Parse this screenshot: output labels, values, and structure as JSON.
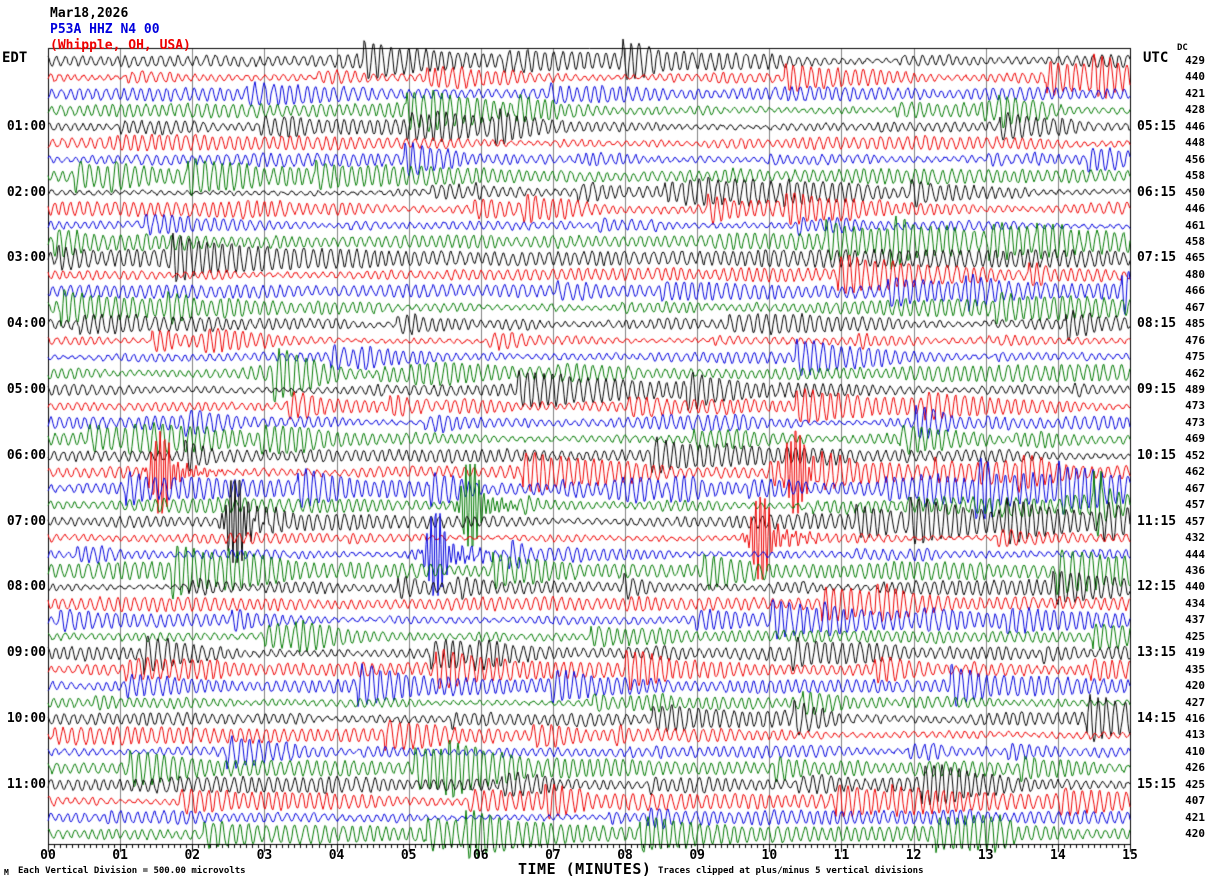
{
  "header": {
    "date": "Mar18,2026",
    "station": "P53A HHZ N4 00",
    "location": "(Whipple, OH, USA)"
  },
  "left_axis": {
    "label": "EDT",
    "hour_labels": [
      "01:00",
      "02:00",
      "03:00",
      "04:00",
      "05:00",
      "06:00",
      "07:00",
      "08:00",
      "09:00",
      "10:00",
      "11:00"
    ]
  },
  "right_axis": {
    "label": "UTC",
    "dc_label": "DC",
    "hour_labels": [
      "05:15",
      "06:15",
      "07:15",
      "08:15",
      "09:15",
      "10:15",
      "11:15",
      "12:15",
      "13:15",
      "14:15",
      "15:15"
    ]
  },
  "x_axis": {
    "title": "TIME (MINUTES)",
    "tick_labels": [
      "00",
      "01",
      "02",
      "03",
      "04",
      "05",
      "06",
      "07",
      "08",
      "09",
      "10",
      "11",
      "12",
      "13",
      "14",
      "15"
    ]
  },
  "footer": {
    "scale_note": "Each Vertical Division =  500.00 microvolts",
    "clip_note": "Traces clipped at plus/minus 5 vertical divisions",
    "corner_mark": "M"
  },
  "colors": {
    "trace_cycle": [
      "#000000",
      "#ee0000",
      "#0000dd",
      "#007a00"
    ],
    "grid": "#808080",
    "frame": "#000000",
    "station_text": "#0000dd",
    "location_text": "#ee0000"
  },
  "chart_data": {
    "type": "line",
    "title": "P53A HHZ N4 00 (Whipple, OH, USA) helicorder seismogram, Mar18,2026",
    "x_range_minutes": [
      0,
      15
    ],
    "lines": 48,
    "minutes_per_line": 15,
    "traces_per_hour": 4,
    "trace_color_cycle": [
      "black",
      "red",
      "blue",
      "green"
    ],
    "left_labels_timezone": "EDT",
    "right_labels_timezone": "UTC",
    "microvolts_per_division": 500.0,
    "clip_divisions": 5,
    "minor_tick_seconds": 5,
    "dc_offsets": [
      429,
      440,
      421,
      428,
      446,
      448,
      456,
      458,
      450,
      446,
      461,
      458,
      465,
      480,
      466,
      467,
      485,
      476,
      475,
      462,
      489,
      473,
      473,
      469,
      452,
      462,
      467,
      457,
      457,
      432,
      444,
      436,
      440,
      434,
      437,
      425,
      419,
      435,
      420,
      427,
      416,
      413,
      410,
      426,
      425,
      407,
      421,
      420
    ],
    "events": [
      {
        "row": 26,
        "minute": 1.55,
        "color": "red"
      },
      {
        "row": 29,
        "minute": 2.59,
        "color": "black"
      },
      {
        "row": 31,
        "minute": 5.37,
        "color": "blue"
      },
      {
        "row": 28,
        "minute": 5.85,
        "color": "green"
      },
      {
        "row": 30,
        "minute": 9.87,
        "color": "red"
      },
      {
        "row": 26,
        "minute": 10.36,
        "color": "red"
      }
    ],
    "high_amplitude_regions": [
      {
        "row": 28,
        "from_minute": 10.6,
        "to_minute": 14.6,
        "factor": 2.2
      },
      {
        "row": 27,
        "from_minute": 12.1,
        "to_minute": 13.1,
        "factor": 1.7
      },
      {
        "row": 48,
        "from_minute": 12.3,
        "to_minute": 13.4,
        "factor": 2.3
      }
    ]
  }
}
